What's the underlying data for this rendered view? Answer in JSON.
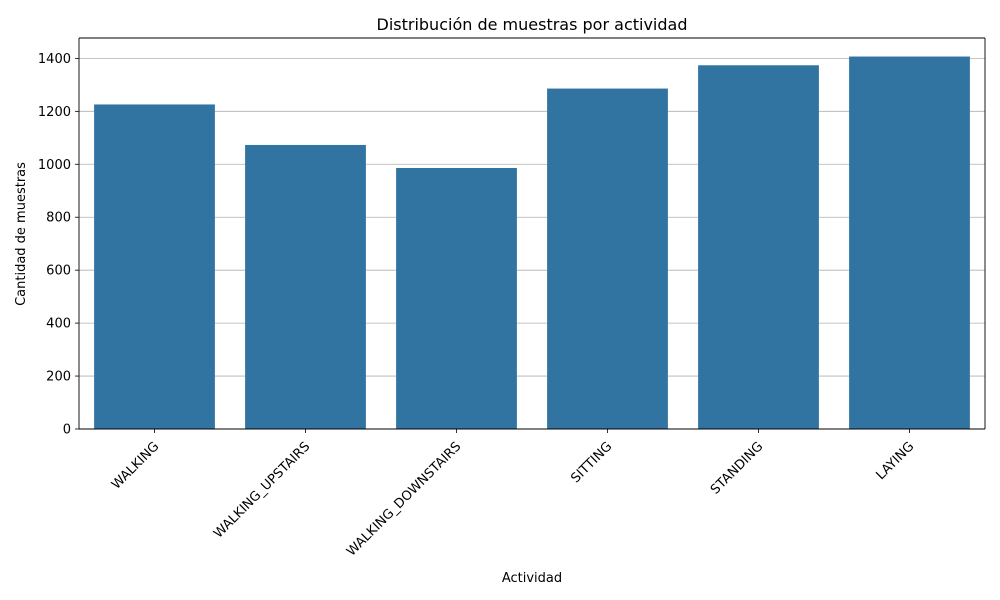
{
  "chart_data": {
    "type": "bar",
    "title": "Distribución de muestras por actividad",
    "xlabel": "Actividad",
    "ylabel": "Cantidad de muestras",
    "categories": [
      "WALKING",
      "WALKING_UPSTAIRS",
      "WALKING_DOWNSTAIRS",
      "SITTING",
      "STANDING",
      "LAYING"
    ],
    "values": [
      1226,
      1073,
      986,
      1286,
      1374,
      1407
    ],
    "ylim": [
      0,
      1477
    ],
    "yticks": [
      0,
      200,
      400,
      600,
      800,
      1000,
      1200,
      1400
    ],
    "grid": "y",
    "xtick_rotation_deg": 45,
    "bar_color": "#3274a1",
    "legend": "none"
  }
}
